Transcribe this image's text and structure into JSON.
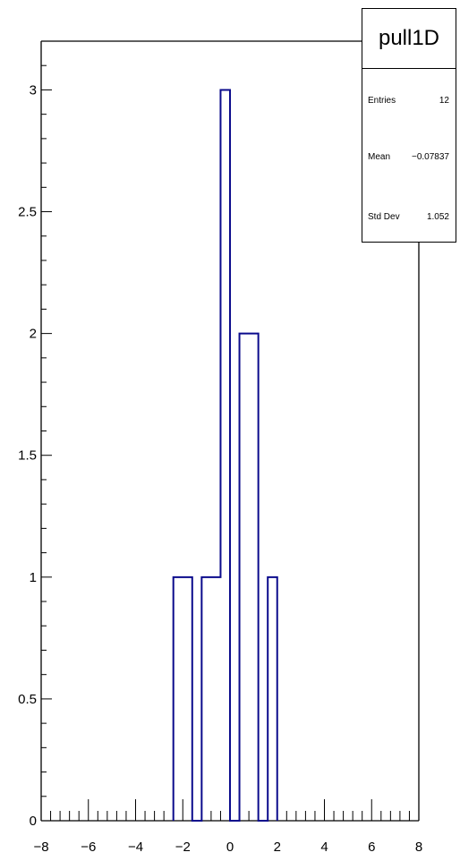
{
  "chart_data": {
    "type": "histogram",
    "title": "",
    "xlabel": "",
    "ylabel": "",
    "xlim": [
      -8,
      8
    ],
    "ylim": [
      0,
      3.2
    ],
    "x_ticks": [
      -8,
      -6,
      -4,
      -2,
      0,
      2,
      4,
      6,
      8
    ],
    "x_tick_labels": [
      "−8",
      "−6",
      "−4",
      "−2",
      "0",
      "2",
      "4",
      "6",
      "8"
    ],
    "y_ticks": [
      0,
      0.5,
      1,
      1.5,
      2,
      2.5,
      3
    ],
    "y_tick_labels": [
      "0",
      "0.5",
      "1",
      "1.5",
      "2",
      "2.5",
      "3"
    ],
    "bin_width": 0.4,
    "bins": [
      {
        "x0": -2.4,
        "x1": -2.0,
        "value": 1
      },
      {
        "x0": -2.0,
        "x1": -1.6,
        "value": 1
      },
      {
        "x0": -1.6,
        "x1": -1.2,
        "value": 0
      },
      {
        "x0": -1.2,
        "x1": -0.8,
        "value": 1
      },
      {
        "x0": -0.8,
        "x1": -0.4,
        "value": 1
      },
      {
        "x0": -0.4,
        "x1": 0.0,
        "value": 3
      },
      {
        "x0": 0.0,
        "x1": 0.4,
        "value": 0
      },
      {
        "x0": 0.4,
        "x1": 0.8,
        "value": 2
      },
      {
        "x0": 0.8,
        "x1": 1.2,
        "value": 2
      },
      {
        "x0": 1.2,
        "x1": 1.6,
        "value": 0
      },
      {
        "x0": 1.6,
        "x1": 2.0,
        "value": 1
      }
    ],
    "line_color": "#0b0b8c",
    "grid": false,
    "legend": "none"
  },
  "stats_box": {
    "title": "pull1D",
    "rows": [
      {
        "label": "Entries",
        "value": "12"
      },
      {
        "label": "Mean",
        "value": "−0.07837"
      },
      {
        "label": "Std Dev",
        "value": "1.052"
      }
    ]
  }
}
